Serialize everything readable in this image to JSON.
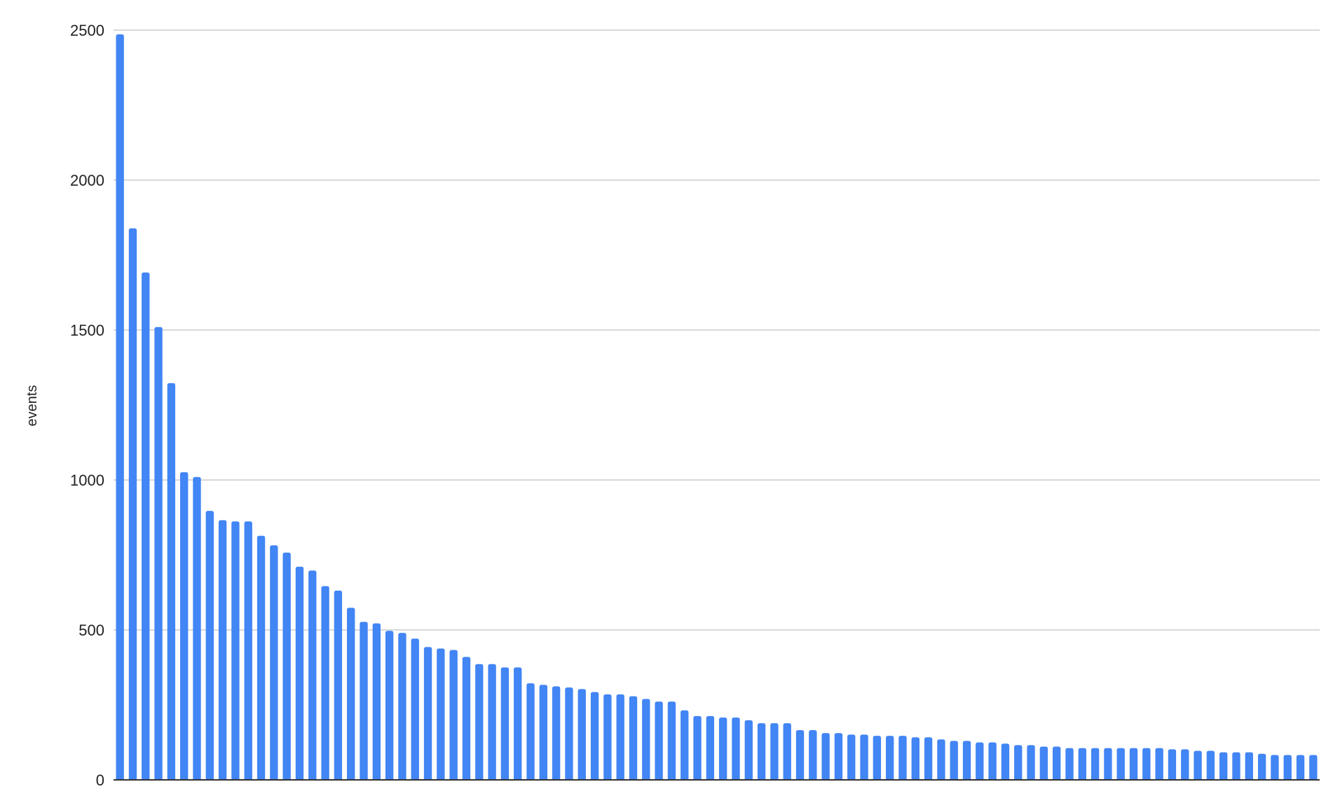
{
  "chart_data": {
    "type": "bar",
    "title": "",
    "xlabel": "",
    "ylabel": "events",
    "ylim": [
      0,
      2500
    ],
    "yticks": [
      0,
      500,
      1000,
      1500,
      2000,
      2500
    ],
    "grid": true,
    "legend": "none",
    "bar_color": "#4285f4",
    "grid_color": "#cccccc",
    "axis_color": "#333333",
    "values": [
      2486,
      1839,
      1692,
      1510,
      1323,
      1026,
      1010,
      897,
      866,
      862,
      862,
      814,
      782,
      758,
      711,
      698,
      646,
      631,
      574,
      527,
      522,
      497,
      490,
      471,
      443,
      438,
      433,
      410,
      386,
      386,
      375,
      375,
      322,
      317,
      312,
      308,
      303,
      293,
      285,
      285,
      279,
      270,
      261,
      261,
      232,
      213,
      213,
      208,
      208,
      199,
      189,
      189,
      189,
      166,
      166,
      156,
      156,
      151,
      151,
      147,
      147,
      147,
      142,
      142,
      135,
      130,
      130,
      125,
      125,
      121,
      116,
      116,
      111,
      111,
      106,
      106,
      106,
      106,
      106,
      106,
      106,
      106,
      102,
      102,
      97,
      97,
      92,
      92,
      92,
      87,
      83,
      83,
      83,
      83
    ]
  }
}
